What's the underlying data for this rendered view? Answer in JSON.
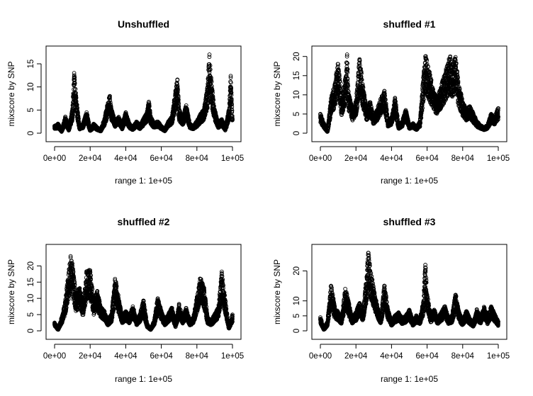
{
  "chart_data": [
    {
      "type": "scatter",
      "title": "Unshuffled",
      "xlabel": "range 1: 1e+05",
      "ylabel": "mixscore by SNP",
      "xlim": [
        0,
        100000
      ],
      "ylim": [
        0,
        17
      ],
      "x_ticks": [
        "0e+00",
        "2e+04",
        "4e+04",
        "6e+04",
        "8e+04",
        "1e+05"
      ],
      "x_tick_values": [
        0,
        20000,
        40000,
        60000,
        80000,
        100000
      ],
      "y_ticks": [
        "0",
        "5",
        "10",
        "15"
      ],
      "y_tick_values": [
        0,
        5,
        10,
        15
      ],
      "grid": false,
      "marker": "open-circle",
      "series": [
        {
          "x": [
            0,
            2000,
            4000,
            6000,
            8000,
            10000,
            11000,
            12000,
            14000,
            16000,
            18000,
            20000,
            22000,
            24000,
            26000,
            28000,
            30000,
            31000,
            32000,
            34000,
            36000,
            38000,
            40000,
            42000,
            44000,
            46000,
            48000,
            50000,
            52000,
            53000,
            54000,
            56000,
            58000,
            60000,
            62000,
            64000,
            66000,
            68000,
            69000,
            70000,
            72000,
            74000,
            76000,
            78000,
            80000,
            82000,
            84000,
            86000,
            87000,
            88000,
            89000,
            90000,
            92000,
            94000,
            96000,
            98000,
            99000,
            100000
          ],
          "y": [
            1.5,
            2.0,
            0.5,
            3.5,
            1.0,
            5.0,
            13.0,
            8.0,
            1.5,
            2.0,
            4.5,
            0.8,
            2.0,
            1.2,
            0.7,
            3.0,
            6.5,
            8.0,
            5.0,
            2.5,
            3.5,
            1.5,
            4.5,
            2.0,
            1.2,
            2.5,
            1.5,
            3.0,
            4.5,
            6.8,
            3.5,
            2.0,
            2.5,
            1.5,
            0.8,
            2.5,
            3.5,
            9.0,
            11.5,
            5.0,
            3.0,
            6.0,
            2.0,
            1.5,
            2.5,
            4.0,
            5.0,
            10.0,
            16.5,
            12.0,
            8.0,
            5.0,
            2.0,
            3.0,
            1.0,
            5.0,
            12.0,
            3.0
          ]
        }
      ]
    },
    {
      "type": "scatter",
      "title": "shuffled #1",
      "xlabel": "range 1: 1e+05",
      "ylabel": "mixscore by SNP",
      "xlim": [
        0,
        100000
      ],
      "ylim": [
        0,
        20.5
      ],
      "x_ticks": [
        "0e+00",
        "2e+04",
        "4e+04",
        "6e+04",
        "8e+04",
        "1e+05"
      ],
      "x_tick_values": [
        0,
        20000,
        40000,
        60000,
        80000,
        100000
      ],
      "y_ticks": [
        "0",
        "5",
        "10",
        "15",
        "20"
      ],
      "y_tick_values": [
        0,
        5,
        10,
        15,
        20
      ],
      "grid": false,
      "marker": "open-circle",
      "series": [
        {
          "x": [
            0,
            2000,
            4000,
            6000,
            8000,
            10000,
            12000,
            14000,
            15000,
            16000,
            18000,
            20000,
            22000,
            24000,
            26000,
            28000,
            30000,
            32000,
            34000,
            36000,
            38000,
            40000,
            42000,
            44000,
            46000,
            48000,
            50000,
            52000,
            54000,
            56000,
            58000,
            59000,
            60000,
            62000,
            64000,
            66000,
            68000,
            70000,
            72000,
            73000,
            74000,
            76000,
            78000,
            80000,
            82000,
            84000,
            86000,
            88000,
            90000,
            92000,
            94000,
            96000,
            98000,
            100000
          ],
          "y": [
            5.0,
            2.5,
            0.5,
            9.0,
            12.0,
            18.0,
            8.0,
            14.0,
            20.0,
            10.0,
            6.0,
            8.0,
            19.0,
            12.0,
            6.0,
            8.0,
            4.0,
            6.0,
            9.0,
            11.0,
            3.0,
            4.0,
            9.0,
            2.0,
            3.0,
            6.0,
            2.0,
            2.5,
            1.5,
            3.0,
            15.0,
            20.0,
            18.0,
            14.0,
            10.0,
            9.0,
            12.0,
            15.0,
            18.0,
            20.0,
            17.0,
            19.0,
            12.0,
            8.0,
            6.0,
            7.0,
            5.0,
            3.0,
            2.0,
            1.5,
            2.0,
            5.0,
            4.0,
            6.5
          ]
        }
      ]
    },
    {
      "type": "scatter",
      "title": "shuffled #2",
      "xlabel": "range 1: 1e+05",
      "ylabel": "mixscore by SNP",
      "xlim": [
        0,
        100000
      ],
      "ylim": [
        0,
        24
      ],
      "x_ticks": [
        "0e+00",
        "2e+04",
        "4e+04",
        "6e+04",
        "8e+04",
        "1e+05"
      ],
      "x_tick_values": [
        0,
        20000,
        40000,
        60000,
        80000,
        100000
      ],
      "y_ticks": [
        "0",
        "5",
        "10",
        "15",
        "20"
      ],
      "y_tick_values": [
        0,
        5,
        10,
        15,
        20
      ],
      "grid": false,
      "marker": "open-circle",
      "series": [
        {
          "x": [
            0,
            2000,
            4000,
            6000,
            8000,
            9000,
            10000,
            12000,
            14000,
            16000,
            18000,
            20000,
            22000,
            24000,
            26000,
            28000,
            30000,
            32000,
            34000,
            36000,
            38000,
            40000,
            42000,
            44000,
            46000,
            48000,
            50000,
            52000,
            54000,
            56000,
            58000,
            60000,
            62000,
            64000,
            66000,
            68000,
            70000,
            72000,
            74000,
            76000,
            78000,
            80000,
            82000,
            84000,
            86000,
            88000,
            90000,
            92000,
            94000,
            96000,
            98000,
            100000
          ],
          "y": [
            2.5,
            0.5,
            4.0,
            9.0,
            18.0,
            23.0,
            20.0,
            11.0,
            13.0,
            8.0,
            18.0,
            18.0,
            9.0,
            12.0,
            7.0,
            6.0,
            3.0,
            5.0,
            16.0,
            10.0,
            4.0,
            6.0,
            4.0,
            7.5,
            3.0,
            5.0,
            9.0,
            2.0,
            0.5,
            3.0,
            10.0,
            6.0,
            3.0,
            5.0,
            7.0,
            2.0,
            8.0,
            4.0,
            7.0,
            3.0,
            4.0,
            10.0,
            16.0,
            13.0,
            4.0,
            3.0,
            5.0,
            7.0,
            17.5,
            9.0,
            1.0,
            5.0
          ]
        }
      ]
    },
    {
      "type": "scatter",
      "title": "shuffled #3",
      "xlabel": "range 1: 1e+05",
      "ylabel": "mixscore by SNP",
      "xlim": [
        0,
        100000
      ],
      "ylim": [
        0,
        26
      ],
      "x_ticks": [
        "0e+00",
        "2e+04",
        "4e+04",
        "6e+04",
        "8e+04",
        "1e+05"
      ],
      "x_tick_values": [
        0,
        20000,
        40000,
        60000,
        80000,
        100000
      ],
      "y_ticks": [
        "0",
        "5",
        "10",
        "20"
      ],
      "y_tick_values": [
        0,
        5,
        10,
        20
      ],
      "grid": false,
      "marker": "open-circle",
      "series": [
        {
          "x": [
            0,
            2000,
            4000,
            6000,
            8000,
            10000,
            12000,
            14000,
            16000,
            18000,
            20000,
            22000,
            24000,
            26000,
            27000,
            28000,
            30000,
            32000,
            34000,
            36000,
            38000,
            40000,
            42000,
            44000,
            46000,
            48000,
            50000,
            52000,
            54000,
            56000,
            58000,
            59000,
            60000,
            62000,
            64000,
            66000,
            68000,
            70000,
            72000,
            74000,
            76000,
            78000,
            80000,
            82000,
            84000,
            86000,
            88000,
            90000,
            92000,
            94000,
            96000,
            98000,
            100000
          ],
          "y": [
            4.5,
            0.5,
            3.0,
            15.0,
            8.0,
            6.0,
            4.0,
            14.0,
            9.0,
            4.0,
            6.0,
            9.0,
            6.0,
            18.0,
            26.0,
            20.0,
            14.0,
            8.0,
            4.0,
            15.0,
            7.0,
            3.0,
            5.0,
            6.0,
            4.0,
            5.0,
            7.0,
            3.0,
            5.0,
            4.0,
            10.0,
            22.0,
            12.0,
            5.0,
            7.0,
            4.0,
            6.0,
            8.0,
            4.0,
            5.0,
            12.0,
            6.0,
            3.0,
            6.5,
            4.0,
            2.5,
            7.0,
            4.0,
            8.0,
            4.0,
            8.0,
            5.5,
            3.0
          ]
        }
      ]
    }
  ]
}
